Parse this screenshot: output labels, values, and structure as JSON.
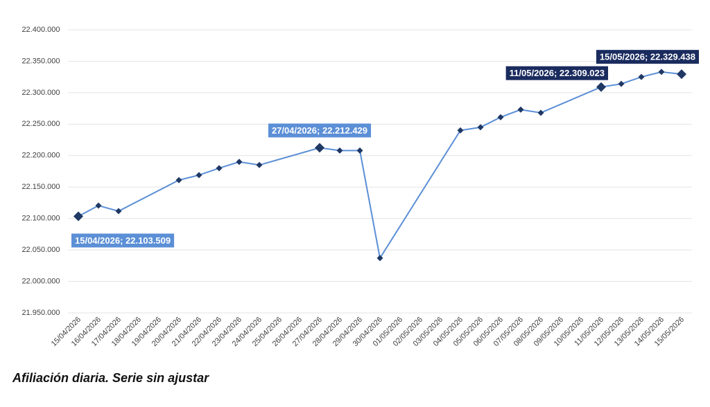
{
  "chart_data": {
    "type": "line",
    "title": "Afiliación diaria. Serie sin ajustar",
    "categories": [
      "15/04/2026",
      "16/04/2026",
      "17/04/2026",
      "18/04/2026",
      "19/04/2026",
      "20/04/2026",
      "21/04/2026",
      "22/04/2026",
      "23/04/2026",
      "24/04/2026",
      "25/04/2026",
      "26/04/2026",
      "27/04/2026",
      "28/04/2026",
      "29/04/2026",
      "30/04/2026",
      "01/05/2026",
      "02/05/2026",
      "03/05/2026",
      "04/05/2026",
      "05/05/2026",
      "06/05/2026",
      "07/05/2026",
      "08/05/2026",
      "09/05/2026",
      "10/05/2026",
      "11/05/2026",
      "12/05/2026",
      "13/05/2026",
      "14/05/2026",
      "15/05/2026"
    ],
    "series": [
      {
        "color": "#5b8fd6",
        "marker_color": "#1f3864",
        "x": [
          "15/04/2026",
          "16/04/2026",
          "17/04/2026",
          "20/04/2026",
          "21/04/2026",
          "22/04/2026",
          "23/04/2026",
          "24/04/2026",
          "27/04/2026",
          "28/04/2026",
          "29/04/2026",
          "30/04/2026",
          "04/05/2026",
          "05/05/2026",
          "06/05/2026",
          "07/05/2026",
          "08/05/2026",
          "11/05/2026",
          "12/05/2026",
          "13/05/2026",
          "14/05/2026",
          "15/05/2026"
        ],
        "values": [
          22103509,
          22120500,
          22111700,
          22161000,
          22169000,
          22180000,
          22190000,
          22185000,
          22212429,
          22208000,
          22208000,
          22037000,
          22240000,
          22245000,
          22261000,
          22273000,
          22268000,
          22309023,
          22314000,
          22325000,
          22333000,
          22329438
        ],
        "value_labels": [
          "15/04/2026; 22.103.509",
          null,
          null,
          null,
          null,
          null,
          null,
          null,
          "27/04/2026; 22.212.429",
          null,
          null,
          null,
          null,
          null,
          null,
          null,
          null,
          "11/05/2026; 22.309.023",
          null,
          null,
          null,
          "15/05/2026; 22.329.438"
        ],
        "value_label_colors": [
          "#5b8fd6",
          null,
          null,
          null,
          null,
          null,
          null,
          null,
          "#5b8fd6",
          null,
          null,
          null,
          null,
          null,
          null,
          null,
          null,
          "#1a2b5e",
          null,
          null,
          null,
          "#1a2b5e"
        ]
      }
    ],
    "ylim": [
      21950000,
      22400000
    ],
    "yticks": [
      {
        "value": 21950000,
        "label": "21.950.000"
      },
      {
        "value": 22000000,
        "label": "22.000.000"
      },
      {
        "value": 22050000,
        "label": "22.050.000"
      },
      {
        "value": 22100000,
        "label": "22.100.000"
      },
      {
        "value": 22150000,
        "label": "22.150.000"
      },
      {
        "value": 22200000,
        "label": "22.200.000"
      },
      {
        "value": 22250000,
        "label": "22.250.000"
      },
      {
        "value": 22300000,
        "label": "22.300.000"
      },
      {
        "value": 22350000,
        "label": "22.350.000"
      },
      {
        "value": 22400000,
        "label": "22.400.000"
      }
    ],
    "grid": true
  }
}
